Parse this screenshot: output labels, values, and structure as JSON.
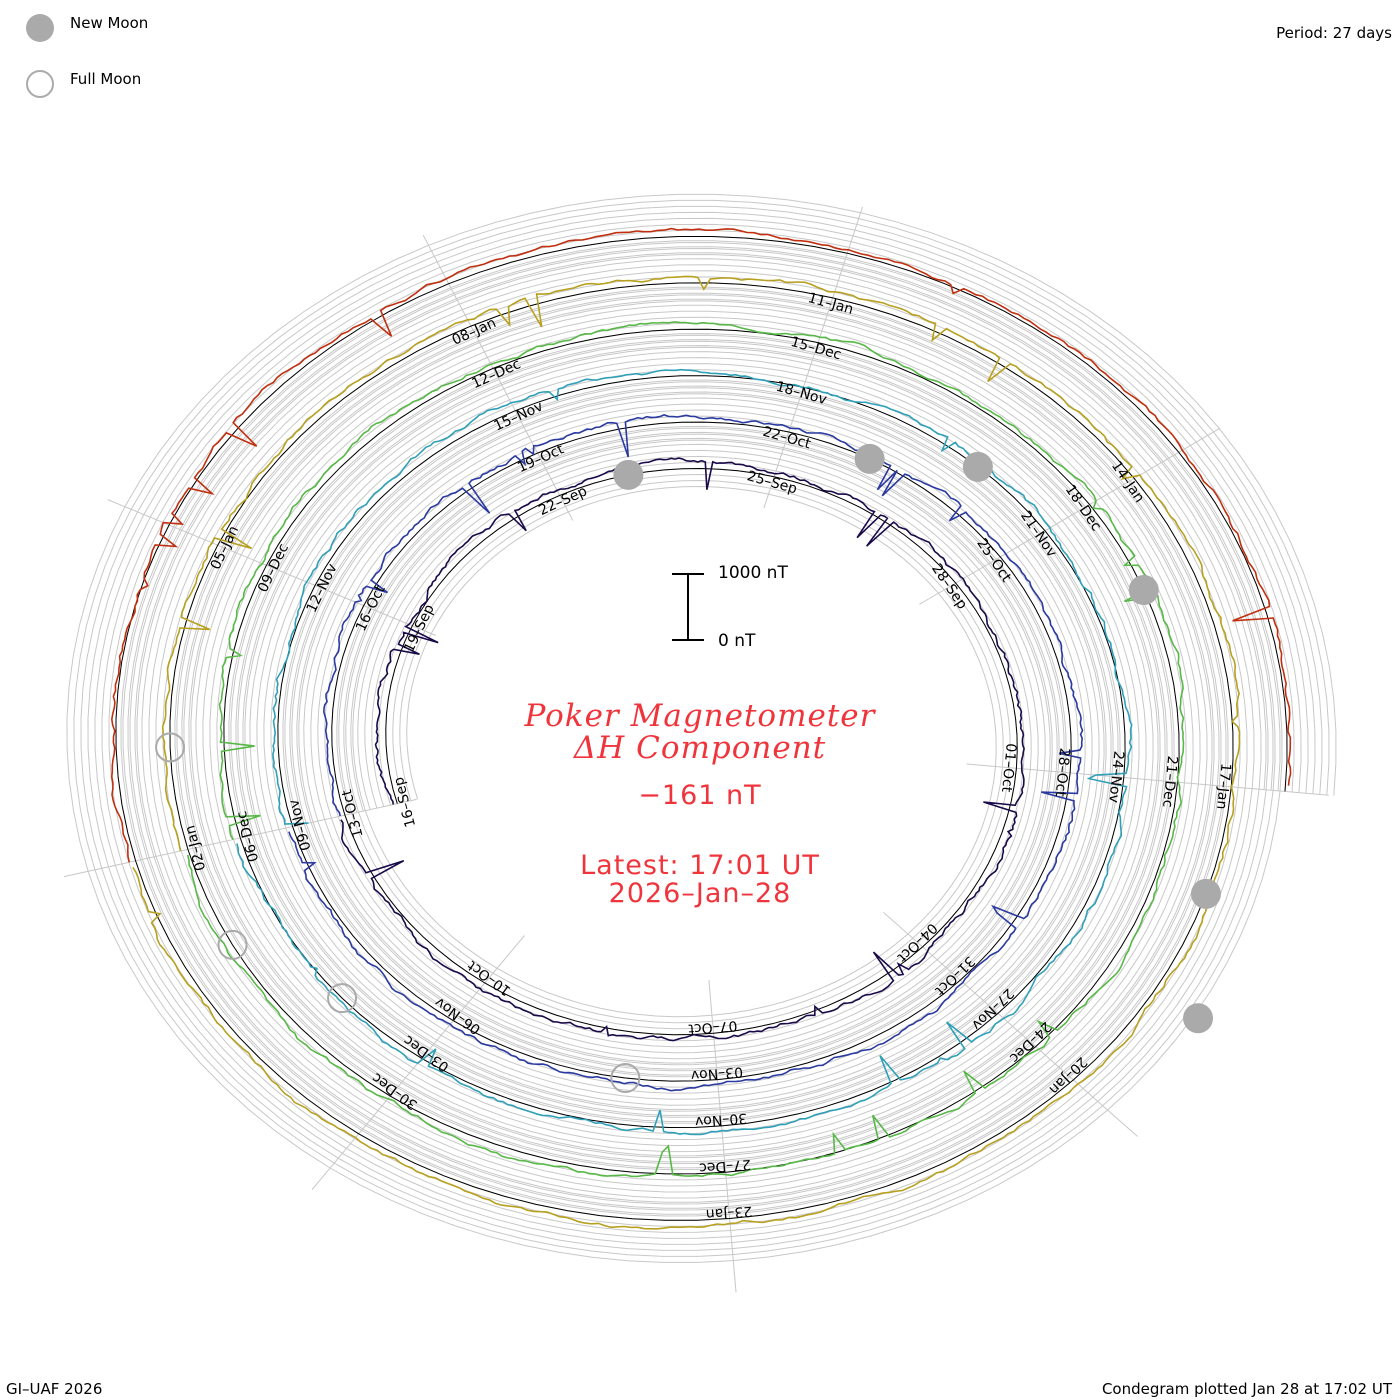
{
  "legend": {
    "new_moon": {
      "label": "New Moon",
      "color": "#aaaaaa"
    },
    "full_moon": {
      "label": "Full Moon",
      "color": "#aaaaaa"
    }
  },
  "period_label": "Period: 27 days",
  "title": {
    "line1": "Poker Magnetometer",
    "line2": "ΔH Component",
    "value": "−161 nT",
    "latest_label": "Latest: 17:01 UT",
    "latest_date": "2026–Jan–28",
    "color": "#f0343c"
  },
  "scale_bar": {
    "top_label": "1000 nT",
    "bottom_label": "0 nT"
  },
  "footer": {
    "left": "GI–UAF 2026",
    "right": "Condegram plotted Jan 28 at 17:02 UT"
  },
  "chart_data": {
    "type": "line",
    "subtype": "condegram-spiral",
    "period_days": 27,
    "units": "nT",
    "scale_nT": 1000,
    "series": [
      {
        "color": "#1a0a4a",
        "labels": [
          "16–Sep",
          "19–Sep",
          "22–Sep",
          "25–Sep",
          "28–Sep",
          "01–Oct",
          "04–Oct",
          "07–Oct",
          "10–Oct"
        ]
      },
      {
        "color": "#2a3aa0",
        "labels": [
          "13–Oct",
          "16–Oct",
          "19–Oct",
          "22–Oct",
          "25–Oct",
          "28–Oct",
          "31–Oct",
          "03–Nov",
          "06–Nov"
        ]
      },
      {
        "color": "#30a0b8",
        "labels": [
          "09–Nov",
          "12–Nov",
          "15–Nov",
          "18–Nov",
          "21–Nov",
          "24–Nov",
          "27–Nov",
          "30–Nov",
          "03–Dec"
        ]
      },
      {
        "color": "#58b848",
        "labels": [
          "06–Dec",
          "09–Dec",
          "12–Dec",
          "15–Dec",
          "18–Dec",
          "21–Dec",
          "24–Dec",
          "27–Dec",
          "30–Dec"
        ]
      },
      {
        "color": "#b8a020",
        "labels": [
          "02–Jan",
          "05–Jan",
          "08–Jan",
          "11–Jan",
          "14–Jan",
          "17–Jan",
          "20–Jan",
          "23–Jan"
        ]
      },
      {
        "color": "#c03010",
        "labels": []
      }
    ],
    "moon_markers": {
      "new": [
        {
          "turn": 0,
          "day": 7
        },
        {
          "turn": 1,
          "day": 10
        },
        {
          "turn": 2,
          "day": 11
        },
        {
          "turn": 3,
          "day": 13
        },
        {
          "turn": 4,
          "day": 16
        },
        {
          "turn": 5,
          "day": 17
        }
      ],
      "full": [
        {
          "turn": 1,
          "day": 22
        },
        {
          "turn": 2,
          "day": 25
        },
        {
          "turn": 3,
          "day": 26
        },
        {
          "turn": 4,
          "day": 1
        }
      ]
    }
  }
}
